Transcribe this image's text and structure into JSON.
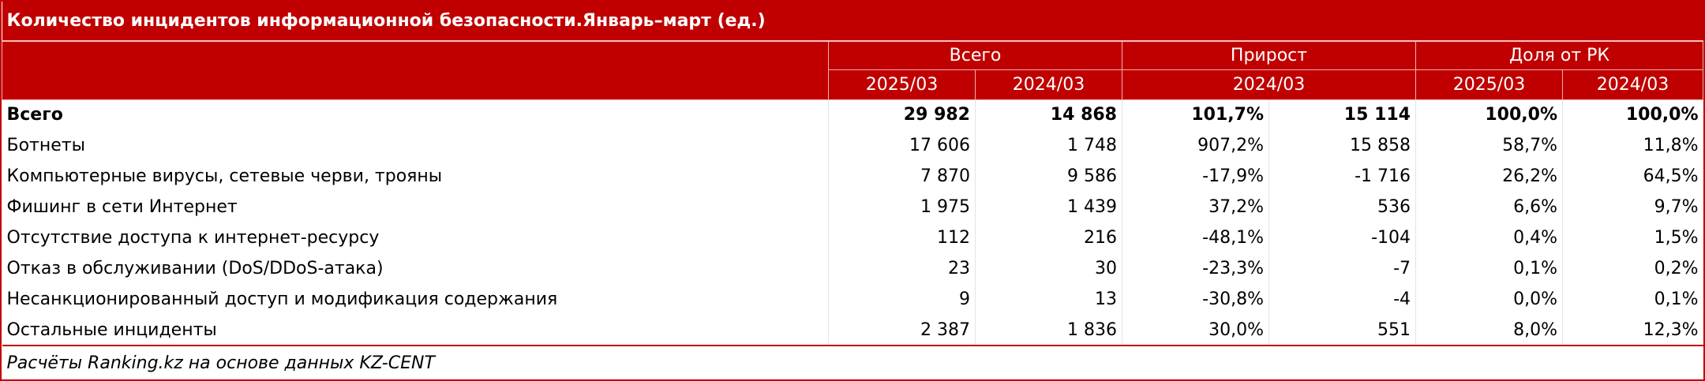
{
  "title": "Количество инцидентов информационной безопасности.Январь–март (ед.)",
  "header": {
    "groups": [
      {
        "label": "Всего",
        "span": 2
      },
      {
        "label": "Прирост",
        "span": 2
      },
      {
        "label": "Доля от РК",
        "span": 2
      }
    ],
    "periods": [
      {
        "label": "2025/03",
        "span": 1
      },
      {
        "label": "2024/03",
        "span": 1
      },
      {
        "label": "2024/03",
        "span": 2
      },
      {
        "label": "2025/03",
        "span": 1
      },
      {
        "label": "2024/03",
        "span": 1
      }
    ]
  },
  "table": {
    "rows": [
      [
        "Всего",
        "29 982",
        "14 868",
        "101,7%",
        "15 114",
        "100,0%",
        "100,0%"
      ],
      [
        "Ботнеты",
        "17 606",
        "1 748",
        "907,2%",
        "15 858",
        "58,7%",
        "11,8%"
      ],
      [
        "Компьютерные вирусы, сетевые черви, трояны",
        "7 870",
        "9 586",
        "-17,9%",
        "-1 716",
        "26,2%",
        "64,5%"
      ],
      [
        "Фишинг в сети Интернет",
        "1 975",
        "1 439",
        "37,2%",
        "536",
        "6,6%",
        "9,7%"
      ],
      [
        "Отсутствие доступа к интернет-ресурсу",
        "112",
        "216",
        "-48,1%",
        "-104",
        "0,4%",
        "1,5%"
      ],
      [
        "Отказ в обслуживании (DoS/DDoS-атака)",
        "23",
        "30",
        "-23,3%",
        "-7",
        "0,1%",
        "0,2%"
      ],
      [
        "Несанкционированный доступ и модификация содержания",
        "9",
        "13",
        "-30,8%",
        "-4",
        "0,0%",
        "0,1%"
      ],
      [
        "Остальные инциденты",
        "2 387",
        "1 836",
        "30,0%",
        "551",
        "8,0%",
        "12,3%"
      ]
    ]
  },
  "footer": "Расчёты Ranking.kz на основе данных KZ-CENT"
}
